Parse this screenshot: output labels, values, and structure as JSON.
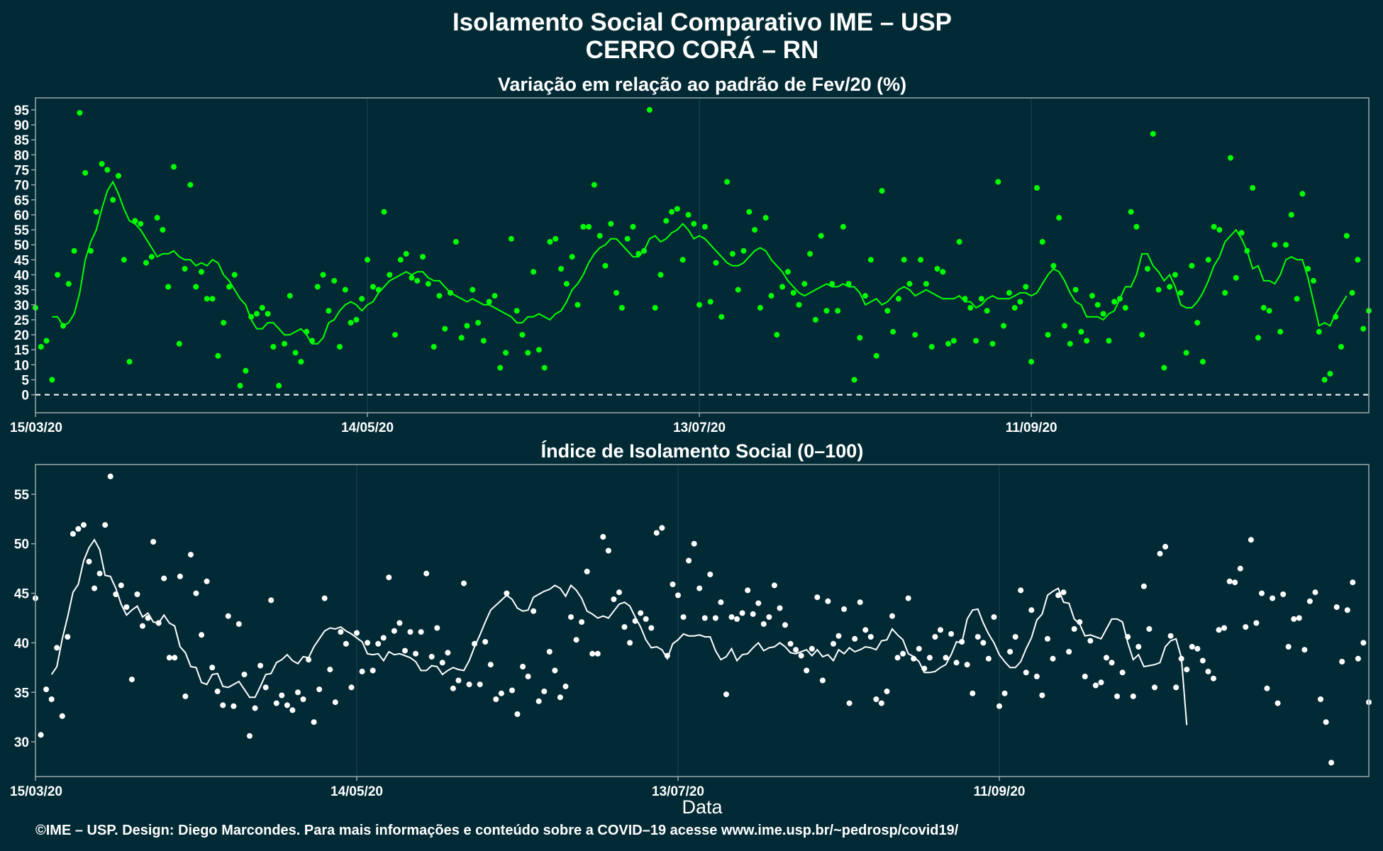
{
  "title": "Isolamento Social Comparativo IME – USP",
  "subtitle": "CERRO CORÁ – RN",
  "footer": "©IME – USP. Design: Diego Marcondes. Para mais informações e conteúdo sobre a COVID–19 acesse www.ime.usp.br/~pedrosp/covid19/",
  "colors": {
    "background": "#022a35",
    "panel_border": "#9aa7ab",
    "grid": "#1a4653",
    "top_series": "#00ff00",
    "bottom_series": "#ffffff"
  },
  "chart_data": [
    {
      "type": "scatter",
      "title": "Variação em relação ao padrão de Fev/20 (%)",
      "xlabel": "",
      "ylabel": "",
      "x_type": "date",
      "x_start": "15/03/20",
      "x_ticks": [
        "15/03/20",
        "14/05/20",
        "13/07/20",
        "11/09/20"
      ],
      "ylim": [
        -6,
        99
      ],
      "y_ticks": [
        0,
        5,
        10,
        15,
        20,
        25,
        30,
        35,
        40,
        45,
        50,
        55,
        60,
        65,
        70,
        75,
        80,
        85,
        90,
        95
      ],
      "reference_line": 0,
      "grid": true,
      "series": [
        {
          "kind": "points",
          "values": [
            29,
            16,
            18,
            5,
            40,
            23,
            37,
            48,
            94,
            74,
            48,
            61,
            77,
            75,
            65,
            73,
            45,
            11,
            58,
            57,
            44,
            46,
            59,
            55,
            36,
            76,
            17,
            42,
            70,
            36,
            41,
            32,
            32,
            13,
            24,
            36,
            40,
            3,
            8,
            26,
            27,
            29,
            27,
            16,
            3,
            17,
            33,
            14,
            11,
            21,
            18,
            36,
            40,
            28,
            38,
            16,
            35,
            24,
            25,
            32,
            45,
            36,
            35,
            61,
            40,
            20,
            45,
            47,
            39,
            38,
            46,
            37,
            16,
            33,
            22,
            34,
            51,
            19,
            23,
            35,
            24,
            18,
            31,
            33,
            9,
            14,
            52,
            28,
            20,
            14,
            41,
            15,
            9,
            51,
            52,
            42,
            37,
            46,
            30,
            56,
            56,
            70,
            53,
            43,
            57,
            34,
            29,
            52,
            56,
            47,
            48,
            95,
            29,
            40,
            58,
            61,
            62,
            45,
            60,
            57,
            30,
            56,
            31,
            44,
            26,
            71,
            47,
            35,
            48,
            61,
            55,
            29,
            59,
            33,
            20,
            36,
            41,
            34,
            30,
            37,
            47,
            25,
            53,
            28,
            37,
            28,
            56,
            37,
            5,
            19,
            33,
            45,
            13,
            68,
            28,
            21,
            32,
            45,
            37,
            20,
            45,
            37,
            16,
            42,
            41,
            17,
            18,
            51,
            32,
            29,
            18,
            32,
            28,
            17,
            71,
            23,
            34,
            29,
            31,
            36,
            11,
            69,
            51,
            20,
            43,
            59,
            23,
            17,
            35,
            21,
            18,
            33,
            30,
            27,
            18,
            31,
            32,
            29,
            61,
            56,
            20,
            42,
            87,
            35,
            9,
            36,
            40,
            34,
            14,
            43,
            24,
            11,
            45,
            56,
            55,
            34,
            79,
            39,
            54,
            48,
            69,
            19,
            29,
            28,
            50,
            21,
            50,
            60,
            32,
            67,
            42,
            38,
            21,
            5,
            7,
            26,
            16,
            53,
            34,
            45,
            22,
            28
          ]
        },
        {
          "kind": "line",
          "values": [
            26,
            26,
            23,
            24,
            27,
            34,
            45,
            51,
            55,
            62,
            68,
            71,
            67,
            62,
            58,
            57,
            55,
            52,
            49,
            46,
            47,
            47,
            48,
            46,
            45,
            45,
            43,
            44,
            43,
            45,
            44,
            40,
            38,
            35,
            32,
            30,
            25,
            22,
            22,
            24,
            24,
            22,
            20,
            20,
            21,
            22,
            20,
            17,
            17,
            19,
            24,
            25,
            28,
            30,
            31,
            30,
            28,
            30,
            31,
            34,
            36,
            38,
            39,
            40,
            41,
            40,
            41,
            41,
            39,
            38,
            38,
            36,
            34,
            33,
            32,
            31,
            32,
            31,
            30,
            30,
            29,
            28,
            27,
            26,
            24,
            24,
            26,
            26,
            27,
            26,
            25,
            27,
            28,
            31,
            35,
            37,
            40,
            44,
            47,
            49,
            50,
            52,
            52,
            50,
            48,
            46,
            46,
            48,
            52,
            53,
            51,
            52,
            54,
            55,
            57,
            55,
            52,
            53,
            52,
            50,
            48,
            46,
            44,
            43,
            43,
            44,
            46,
            48,
            49,
            48,
            45,
            43,
            41,
            38,
            36,
            34,
            33,
            34,
            35,
            36,
            37,
            36,
            36,
            37,
            36,
            36,
            34,
            30,
            31,
            32,
            30,
            31,
            33,
            35,
            36,
            35,
            33,
            34,
            35,
            34,
            33,
            32,
            32,
            32,
            33,
            31,
            31,
            29,
            30,
            32,
            33,
            32,
            32,
            32,
            33,
            34,
            34,
            33,
            34,
            37,
            40,
            42,
            41,
            38,
            34,
            31,
            30,
            26,
            26,
            26,
            25,
            27,
            28,
            32,
            36,
            36,
            40,
            47,
            47,
            43,
            41,
            38,
            40,
            36,
            30,
            29,
            29,
            31,
            34,
            38,
            43,
            46,
            51,
            53,
            55,
            52,
            48,
            42,
            43,
            38,
            38,
            37,
            40,
            45,
            46,
            45,
            45,
            39,
            31,
            23,
            24,
            23,
            27,
            30,
            33
          ]
        }
      ]
    },
    {
      "type": "scatter",
      "title": "Índice de Isolamento Social (0–100)",
      "xlabel": "Data",
      "ylabel": "",
      "x_type": "date",
      "x_start": "15/03/20",
      "x_ticks": [
        "15/03/20",
        "14/05/20",
        "13/07/20",
        "11/09/20"
      ],
      "ylim": [
        26.5,
        58
      ],
      "y_ticks": [
        30,
        35,
        40,
        45,
        50,
        55
      ],
      "grid": true,
      "series": [
        {
          "kind": "points",
          "values": [
            44.5,
            30.7,
            35.3,
            34.3,
            39.5,
            32.6,
            40.6,
            51.0,
            51.5,
            51.9,
            48.2,
            45.5,
            47.0,
            51.9,
            56.8,
            44.9,
            45.8,
            43.6,
            36.3,
            44.9,
            41.7,
            42.5,
            50.2,
            42.0,
            46.5,
            38.5,
            38.5,
            46.7,
            34.6,
            48.9,
            45.0,
            40.8,
            46.2,
            37.5,
            35.1,
            33.7,
            42.7,
            33.6,
            41.9,
            36.8,
            30.6,
            33.4,
            37.7,
            35.5,
            44.3,
            33.9,
            34.7,
            33.7,
            33.2,
            35.0,
            34.3,
            38.3,
            32.0,
            35.3,
            44.5,
            37.3,
            34.0,
            41.1,
            39.9,
            35.5,
            41.0,
            37.1,
            40.0,
            37.2,
            39.9,
            40.5,
            46.6,
            41.2,
            42.0,
            39.2,
            41.1,
            38.9,
            41.1,
            47.0,
            38.6,
            41.5,
            38.0,
            39.0,
            35.4,
            36.2,
            46.0,
            35.8,
            39.9,
            35.8,
            40.1,
            37.8,
            34.3,
            34.9,
            45.0,
            35.2,
            32.8,
            37.6,
            36.6,
            43.2,
            34.1,
            35.1,
            39.1,
            37.2,
            34.5,
            35.6,
            42.6,
            40.3,
            42.1,
            47.2,
            38.9,
            38.9,
            50.7,
            49.3,
            44.4,
            45.1,
            41.6,
            40.0,
            42.2,
            43.0,
            42.4,
            41.5,
            51.1,
            51.6,
            38.7,
            45.9,
            44.8,
            42.6,
            48.3,
            50.0,
            45.5,
            42.5,
            46.9,
            42.5,
            44.1,
            34.8,
            42.6,
            42.4,
            43.0,
            45.3,
            42.9,
            44.0,
            41.9,
            42.6,
            45.8,
            43.5,
            41.8,
            39.9,
            39.3,
            38.7,
            37.2,
            39.4,
            44.6,
            36.2,
            44.2,
            39.9,
            40.7,
            43.4,
            33.9,
            40.4,
            44.1,
            41.3,
            40.6,
            34.3,
            33.9,
            35.1,
            42.7,
            38.5,
            38.9,
            44.5,
            38.4,
            39.4,
            37.4,
            38.5,
            40.6,
            41.3,
            38.5,
            40.9,
            38.0,
            40.1,
            37.8,
            34.9,
            40.6,
            40.0,
            38.4,
            42.6,
            33.6,
            34.9,
            39.1,
            40.6,
            45.3,
            37.0,
            43.3,
            36.6,
            34.7,
            40.4,
            38.4,
            44.8,
            45.1,
            39.1,
            41.4,
            42.1,
            36.6,
            40.2,
            35.7,
            36.0,
            38.5,
            38.0,
            34.6,
            37.0,
            40.6,
            34.6,
            39.6,
            45.7,
            41.4,
            35.5,
            49.0,
            49.7,
            40.7,
            35.5,
            38.4,
            37.3,
            39.6,
            39.4,
            38.2,
            37.1,
            36.4,
            41.3,
            41.5,
            46.2,
            46.1,
            47.5,
            41.6,
            50.4,
            42.0,
            45.0,
            35.4,
            44.5,
            33.9,
            44.9,
            39.6,
            42.4,
            42.5,
            39.3,
            44.2,
            45.1,
            34.3,
            32.0,
            27.9,
            43.6,
            38.1,
            43.3,
            46.1,
            38.4,
            40.0,
            34.0
          ]
        },
        {
          "kind": "line",
          "values": [
            36.8,
            37.6,
            40.4,
            42.6,
            45.1,
            45.9,
            48.3,
            49.6,
            50.4,
            49.4,
            46.8,
            46.7,
            45.5,
            43.9,
            42.8,
            43.3,
            43.7,
            42.6,
            43.0,
            42.1,
            42.0,
            42.8,
            42.0,
            41.7,
            39.6,
            39.0,
            37.6,
            37.5,
            36.0,
            35.8,
            36.8,
            36.9,
            35.6,
            35.5,
            35.8,
            36.1,
            35.3,
            34.5,
            34.5,
            35.6,
            36.8,
            36.9,
            38.0,
            38.3,
            38.8,
            38.2,
            37.9,
            38.6,
            38.5,
            39.6,
            40.4,
            41.2,
            41.5,
            41.4,
            41.6,
            41.2,
            40.9,
            40.5,
            40.1,
            38.9,
            38.8,
            38.9,
            38.2,
            39.1,
            38.8,
            38.9,
            38.7,
            38.5,
            38.1,
            37.2,
            37.2,
            37.7,
            37.6,
            36.8,
            37.2,
            37.5,
            37.3,
            37.2,
            38.2,
            39.6,
            40.8,
            42.1,
            43.3,
            43.8,
            44.3,
            44.8,
            44.4,
            43.5,
            43.2,
            43.3,
            44.6,
            44.9,
            45.2,
            45.4,
            45.8,
            45.5,
            44.7,
            45.8,
            45.3,
            44.5,
            43.2,
            42.9,
            42.5,
            42.7,
            42.5,
            43.2,
            43.9,
            44.1,
            43.7,
            42.6,
            41.6,
            40.3,
            39.5,
            39.6,
            39.3,
            38.4,
            39.9,
            40.3,
            40.9,
            40.7,
            40.7,
            40.8,
            40.6,
            40.6,
            39.2,
            38.3,
            38.6,
            39.4,
            38.2,
            38.8,
            38.9,
            39.5,
            40.0,
            39.2,
            39.5,
            39.6,
            40.0,
            39.6,
            39.0,
            38.9,
            39.1,
            39.3,
            38.7,
            39.3,
            38.6,
            38.8,
            38.2,
            39.3,
            38.9,
            39.5,
            39.1,
            39.3,
            39.6,
            39.5,
            39.3,
            40.2,
            40.3,
            41.4,
            40.8,
            40.3,
            38.9,
            38.6,
            38.1,
            37.0,
            37.0,
            37.1,
            37.5,
            37.8,
            38.8,
            40.1,
            40.0,
            42.4,
            43.3,
            43.4,
            42.0,
            40.9,
            40.0,
            38.8,
            38.1,
            37.5,
            37.5,
            38.1,
            39.4,
            40.5,
            42.3,
            42.9,
            44.8,
            45.2,
            45.5,
            44.1,
            44.0,
            42.4,
            41.9,
            40.7,
            40.8,
            40.6,
            40.4,
            41.4,
            42.4,
            42.4,
            42.1,
            40.0,
            38.3,
            38.8,
            37.6,
            37.7,
            37.8,
            38.0,
            39.6,
            40.2,
            40.4,
            38.5,
            31.7
          ]
        }
      ]
    }
  ]
}
